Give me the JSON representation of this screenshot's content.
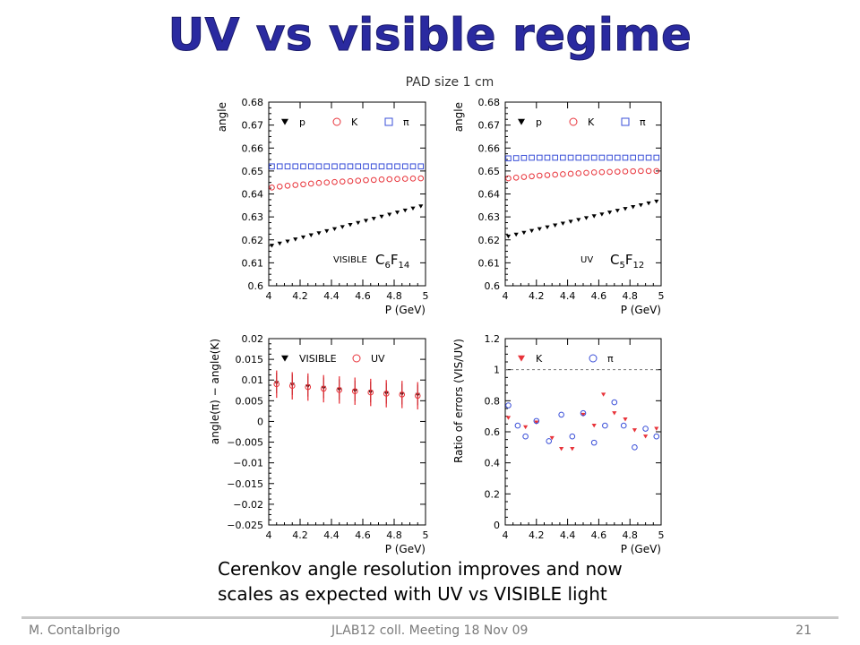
{
  "slide": {
    "title": "UV vs visible regime",
    "caption_line1": "Cerenkov angle resolution improves and now",
    "caption_line2": "scales as expected with UV vs VISIBLE light",
    "footer_author": "M. Contalbrigo",
    "footer_meeting": "JLAB12 coll. Meeting 18 Nov 09",
    "footer_page": "21"
  },
  "figure_title": "PAD size 1 cm",
  "colors": {
    "title": "#2a2aa0",
    "red": "#e8333a",
    "blue": "#3a4fd8",
    "black": "#000000",
    "dash": "#777777"
  },
  "chart_data": [
    {
      "type": "scatter",
      "id": "vis-angle",
      "xlabel": "P (GeV)",
      "ylabel": "angle",
      "xlim": [
        4,
        5
      ],
      "ylim": [
        0.6,
        0.68
      ],
      "xticks": [
        "4",
        "4.2",
        "4.4",
        "4.6",
        "4.8",
        "5"
      ],
      "yticks": [
        "0.6",
        "0.61",
        "0.62",
        "0.63",
        "0.64",
        "0.65",
        "0.66",
        "0.67",
        "0.68"
      ],
      "annotation": "VISIBLE",
      "material": {
        "a": "C",
        "as": "6",
        "b": "F",
        "bs": "14"
      },
      "legend": [
        "p",
        "K",
        "π"
      ],
      "x": [
        4.02,
        4.07,
        4.12,
        4.17,
        4.22,
        4.27,
        4.32,
        4.37,
        4.42,
        4.47,
        4.52,
        4.57,
        4.62,
        4.67,
        4.72,
        4.77,
        4.82,
        4.87,
        4.92,
        4.97
      ],
      "series": [
        {
          "name": "p",
          "marker": "tri-down",
          "color": "#000000",
          "values": [
            0.6175,
            0.6184,
            0.6193,
            0.6202,
            0.6211,
            0.622,
            0.6229,
            0.6238,
            0.6247,
            0.6256,
            0.6265,
            0.6274,
            0.6283,
            0.6292,
            0.6301,
            0.631,
            0.6319,
            0.6328,
            0.6337,
            0.6346
          ]
        },
        {
          "name": "K",
          "marker": "circle",
          "color": "#e8333a",
          "values": [
            0.6428,
            0.6432,
            0.6436,
            0.6439,
            0.6442,
            0.6445,
            0.6448,
            0.645,
            0.6452,
            0.6454,
            0.6456,
            0.6458,
            0.646,
            0.6461,
            0.6463,
            0.6464,
            0.6465,
            0.6466,
            0.6467,
            0.6468
          ]
        },
        {
          "name": "π",
          "marker": "square",
          "color": "#3a4fd8",
          "values": [
            0.652,
            0.652,
            0.652,
            0.652,
            0.652,
            0.652,
            0.652,
            0.652,
            0.652,
            0.652,
            0.652,
            0.652,
            0.652,
            0.652,
            0.652,
            0.652,
            0.652,
            0.652,
            0.652,
            0.652
          ]
        }
      ]
    },
    {
      "type": "scatter",
      "id": "uv-angle",
      "xlabel": "P (GeV)",
      "ylabel": "angle",
      "xlim": [
        4,
        5
      ],
      "ylim": [
        0.6,
        0.68
      ],
      "xticks": [
        "4",
        "4.2",
        "4.4",
        "4.6",
        "4.8",
        "5"
      ],
      "yticks": [
        "0.6",
        "0.61",
        "0.62",
        "0.63",
        "0.64",
        "0.65",
        "0.66",
        "0.67",
        "0.68"
      ],
      "annotation": "UV",
      "material": {
        "a": "C",
        "as": "5",
        "b": "F",
        "bs": "12"
      },
      "legend": [
        "p",
        "K",
        "π"
      ],
      "x": [
        4.02,
        4.07,
        4.12,
        4.17,
        4.22,
        4.27,
        4.32,
        4.37,
        4.42,
        4.47,
        4.52,
        4.57,
        4.62,
        4.67,
        4.72,
        4.77,
        4.82,
        4.87,
        4.92,
        4.97
      ],
      "series": [
        {
          "name": "p",
          "marker": "tri-down",
          "color": "#000000",
          "values": [
            0.6215,
            0.6223,
            0.6231,
            0.6239,
            0.6247,
            0.6255,
            0.6263,
            0.6271,
            0.6279,
            0.6287,
            0.6295,
            0.6303,
            0.6311,
            0.6319,
            0.6327,
            0.6335,
            0.6343,
            0.6351,
            0.6359,
            0.6367
          ]
        },
        {
          "name": "K",
          "marker": "circle",
          "color": "#e8333a",
          "values": [
            0.6468,
            0.6471,
            0.6474,
            0.6477,
            0.648,
            0.6482,
            0.6484,
            0.6486,
            0.6488,
            0.649,
            0.6492,
            0.6494,
            0.6495,
            0.6496,
            0.6497,
            0.6498,
            0.6499,
            0.65,
            0.65,
            0.65
          ]
        },
        {
          "name": "π",
          "marker": "square",
          "color": "#3a4fd8",
          "values": [
            0.6555,
            0.6556,
            0.6557,
            0.6558,
            0.6558,
            0.6558,
            0.6558,
            0.6558,
            0.6558,
            0.6558,
            0.6558,
            0.6558,
            0.6558,
            0.6558,
            0.6558,
            0.6558,
            0.6558,
            0.6558,
            0.6558,
            0.6558
          ]
        }
      ]
    },
    {
      "type": "scatter",
      "id": "angle-diff",
      "xlabel": "P (GeV)",
      "ylabel": "angle(π) − angle(K)",
      "xlim": [
        4,
        5
      ],
      "ylim": [
        -0.025,
        0.02
      ],
      "xticks": [
        "4",
        "4.2",
        "4.4",
        "4.6",
        "4.8",
        "5"
      ],
      "yticks": [
        "−0.025",
        "−0.02",
        "−0.015",
        "−0.01",
        "−0.005",
        "0",
        "0.005",
        "0.01",
        "0.015",
        "0.02"
      ],
      "legend": [
        "VISIBLE",
        "UV"
      ],
      "x": [
        4.05,
        4.15,
        4.25,
        4.35,
        4.45,
        4.55,
        4.65,
        4.75,
        4.85,
        4.95
      ],
      "series": [
        {
          "name": "VISIBLE",
          "marker": "tri-down",
          "color": "#000000",
          "values": [
            0.0093,
            0.0089,
            0.0085,
            0.0081,
            0.0077,
            0.0074,
            0.0071,
            0.0068,
            0.0066,
            0.0064
          ],
          "err": [
            0.0025,
            0.0025,
            0.0025,
            0.0025,
            0.0025,
            0.0025,
            0.0025,
            0.0025,
            0.0025,
            0.0025
          ]
        },
        {
          "name": "UV",
          "marker": "circle",
          "color": "#e8333a",
          "values": [
            0.009,
            0.0086,
            0.0083,
            0.0079,
            0.0076,
            0.0073,
            0.007,
            0.0067,
            0.0065,
            0.0062
          ],
          "err": [
            0.0033,
            0.0033,
            0.0033,
            0.0033,
            0.0033,
            0.0033,
            0.0033,
            0.0033,
            0.0033,
            0.0033
          ]
        }
      ]
    },
    {
      "type": "scatter",
      "id": "error-ratio",
      "xlabel": "P (GeV)",
      "ylabel": "Ratio of errors (VIS/UV)",
      "xlim": [
        4,
        5
      ],
      "ylim": [
        0,
        1.2
      ],
      "xticks": [
        "4",
        "4.2",
        "4.4",
        "4.6",
        "4.8",
        "5"
      ],
      "yticks": [
        "0",
        "0.2",
        "0.4",
        "0.6",
        "0.8",
        "1",
        "1.2"
      ],
      "reference_line": 1,
      "legend": [
        "K",
        "π"
      ],
      "series": [
        {
          "name": "K",
          "marker": "tri-down",
          "color": "#e8333a",
          "x": [
            4.02,
            4.13,
            4.2,
            4.3,
            4.36,
            4.43,
            4.5,
            4.57,
            4.63,
            4.7,
            4.77,
            4.83,
            4.9,
            4.97
          ],
          "values": [
            0.69,
            0.63,
            0.66,
            0.56,
            0.49,
            0.49,
            0.71,
            0.64,
            0.84,
            0.72,
            0.68,
            0.61,
            0.57,
            0.62
          ]
        },
        {
          "name": "π",
          "marker": "circle",
          "color": "#3a4fd8",
          "x": [
            4.02,
            4.08,
            4.13,
            4.2,
            4.28,
            4.36,
            4.43,
            4.5,
            4.57,
            4.64,
            4.7,
            4.76,
            4.83,
            4.9,
            4.97
          ],
          "values": [
            0.77,
            0.64,
            0.57,
            0.67,
            0.54,
            0.71,
            0.57,
            0.72,
            0.53,
            0.64,
            0.79,
            0.64,
            0.5,
            0.62,
            0.57
          ]
        }
      ]
    }
  ]
}
